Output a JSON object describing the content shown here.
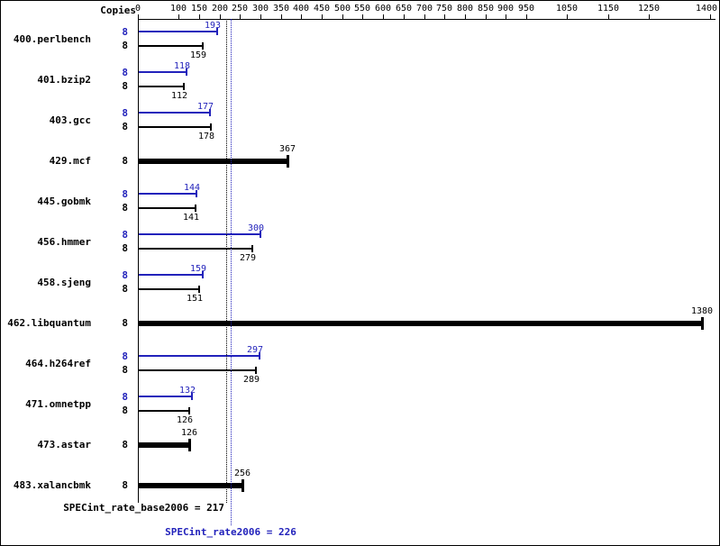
{
  "header": {
    "copies_header": "Copies"
  },
  "colors": {
    "peak_blue": "#2222bb",
    "base_black": "#000000"
  },
  "chart_data": {
    "type": "bar",
    "orientation": "horizontal",
    "xlim": [
      0,
      1400
    ],
    "x_ticks": [
      0,
      100,
      150,
      200,
      250,
      300,
      350,
      400,
      450,
      500,
      550,
      600,
      650,
      700,
      750,
      800,
      850,
      900,
      950,
      1050,
      1150,
      1250,
      1400
    ],
    "grid": false,
    "benchmarks": [
      {
        "name": "400.perlbench",
        "copies": 8,
        "peak": 193,
        "base": 159
      },
      {
        "name": "401.bzip2",
        "copies": 8,
        "peak": 118,
        "base": 112
      },
      {
        "name": "403.gcc",
        "copies": 8,
        "peak": 177,
        "base": 178
      },
      {
        "name": "429.mcf",
        "copies": 8,
        "peak": null,
        "base": 367
      },
      {
        "name": "445.gobmk",
        "copies": 8,
        "peak": 144,
        "base": 141
      },
      {
        "name": "456.hmmer",
        "copies": 8,
        "peak": 300,
        "base": 279
      },
      {
        "name": "458.sjeng",
        "copies": 8,
        "peak": 159,
        "base": 151
      },
      {
        "name": "462.libquantum",
        "copies": 8,
        "peak": null,
        "base": 1380
      },
      {
        "name": "464.h264ref",
        "copies": 8,
        "peak": 297,
        "base": 289
      },
      {
        "name": "471.omnetpp",
        "copies": 8,
        "peak": 132,
        "base": 126
      },
      {
        "name": "473.astar",
        "copies": 8,
        "peak": null,
        "base": 126
      },
      {
        "name": "483.xalancbmk",
        "copies": 8,
        "peak": null,
        "base": 256
      }
    ],
    "summary": {
      "base_label": "SPECint_rate_base2006 = 217",
      "base_value": 217,
      "peak_label": "SPECint_rate2006 = 226",
      "peak_value": 226
    }
  }
}
